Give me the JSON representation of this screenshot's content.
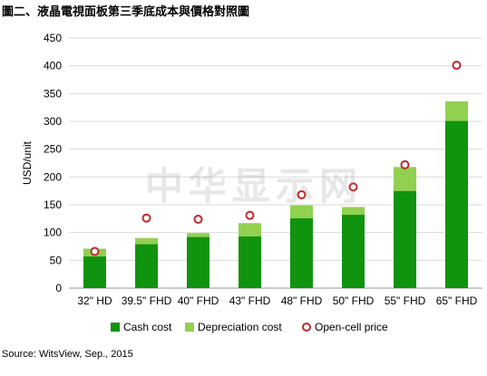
{
  "chart_data": {
    "type": "bar",
    "title": "圖二、液晶電視面板第三季底成本與價格對照圖",
    "ylabel": "USD/unit",
    "xlabel": "",
    "ylim": [
      0,
      450
    ],
    "yticks": [
      0,
      50,
      100,
      150,
      200,
      250,
      300,
      350,
      400,
      450
    ],
    "grid": true,
    "legend_position": "bottom",
    "stacked": true,
    "categories": [
      "32\" HD",
      "39.5\" FHD",
      "40\" FHD",
      "43\" FHD",
      "48\" FHD",
      "50\" FHD",
      "55\" FHD",
      "65\" FHD"
    ],
    "series": [
      {
        "name": "Cash cost",
        "kind": "bar",
        "color": "#10930f",
        "values": [
          57,
          79,
          92,
          93,
          126,
          132,
          175,
          301
        ]
      },
      {
        "name": "Depreciation cost",
        "kind": "bar",
        "color": "#92d050",
        "values": [
          14,
          11,
          7,
          24,
          23,
          14,
          43,
          35
        ]
      },
      {
        "name": "Open-cell price",
        "kind": "marker",
        "color": "#c0282d",
        "values": [
          66,
          126,
          124,
          131,
          168,
          182,
          222,
          401
        ]
      }
    ]
  },
  "watermark": "中华显示网",
  "source": "Source: WitsView, Sep., 2015"
}
